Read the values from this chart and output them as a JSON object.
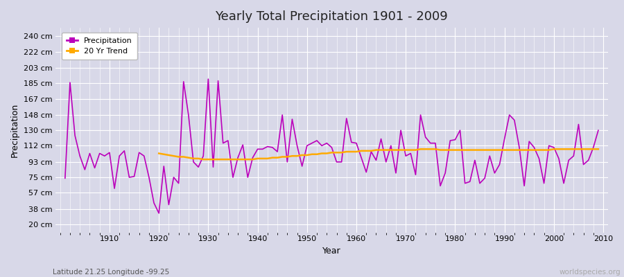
{
  "title": "Yearly Total Precipitation 1901 - 2009",
  "xlabel": "Year",
  "ylabel": "Precipitation",
  "subtitle": "Latitude 21.25 Longitude -99.25",
  "watermark": "worldspecies.org",
  "bg_color": "#d8d8e8",
  "plot_bg_color": "#d8d8e8",
  "precip_color": "#bb00bb",
  "trend_color": "#ffaa00",
  "years": [
    1901,
    1902,
    1903,
    1904,
    1905,
    1906,
    1907,
    1908,
    1909,
    1910,
    1911,
    1912,
    1913,
    1914,
    1915,
    1916,
    1917,
    1918,
    1919,
    1920,
    1921,
    1922,
    1923,
    1924,
    1925,
    1926,
    1927,
    1928,
    1929,
    1930,
    1931,
    1932,
    1933,
    1934,
    1935,
    1936,
    1937,
    1938,
    1939,
    1940,
    1941,
    1942,
    1943,
    1944,
    1945,
    1946,
    1947,
    1948,
    1949,
    1950,
    1951,
    1952,
    1953,
    1954,
    1955,
    1956,
    1957,
    1958,
    1959,
    1960,
    1961,
    1962,
    1963,
    1964,
    1965,
    1966,
    1967,
    1968,
    1969,
    1970,
    1971,
    1972,
    1973,
    1974,
    1975,
    1976,
    1977,
    1978,
    1979,
    1980,
    1981,
    1982,
    1983,
    1984,
    1985,
    1986,
    1987,
    1988,
    1989,
    1990,
    1991,
    1992,
    1993,
    1994,
    1995,
    1996,
    1997,
    1998,
    1999,
    2000,
    2001,
    2002,
    2003,
    2004,
    2005,
    2006,
    2007,
    2008,
    2009
  ],
  "precipitation": [
    74,
    186,
    124,
    100,
    84,
    103,
    86,
    103,
    100,
    104,
    62,
    100,
    106,
    75,
    76,
    104,
    100,
    75,
    45,
    33,
    88,
    43,
    75,
    68,
    187,
    148,
    93,
    87,
    100,
    190,
    87,
    188,
    115,
    118,
    75,
    98,
    113,
    75,
    98,
    108,
    108,
    111,
    110,
    105,
    148,
    93,
    143,
    112,
    88,
    112,
    115,
    118,
    112,
    115,
    110,
    93,
    93,
    144,
    116,
    115,
    98,
    81,
    105,
    95,
    120,
    93,
    112,
    80,
    130,
    100,
    103,
    78,
    148,
    122,
    115,
    115,
    65,
    80,
    118,
    119,
    130,
    68,
    70,
    95,
    68,
    74,
    100,
    80,
    90,
    120,
    148,
    142,
    110,
    65,
    117,
    110,
    97,
    68,
    112,
    110,
    97,
    68,
    95,
    100,
    137,
    90,
    95,
    110,
    130
  ],
  "trend": [
    null,
    null,
    null,
    null,
    null,
    null,
    null,
    null,
    null,
    null,
    null,
    null,
    null,
    null,
    null,
    null,
    null,
    null,
    null,
    103,
    102,
    101,
    100,
    99,
    99,
    98,
    97,
    97,
    96,
    96,
    96,
    96,
    96,
    96,
    96,
    96,
    96,
    96,
    96,
    97,
    97,
    97,
    98,
    98,
    99,
    99,
    100,
    100,
    101,
    101,
    102,
    102,
    103,
    103,
    104,
    104,
    104,
    105,
    105,
    105,
    106,
    106,
    106,
    107,
    107,
    107,
    107,
    107,
    107,
    107,
    107,
    107,
    108,
    108,
    108,
    108,
    107,
    107,
    107,
    107,
    107,
    107,
    107,
    107,
    107,
    107,
    107,
    107,
    107,
    107,
    107,
    107,
    107,
    107,
    107,
    107,
    107,
    107,
    107,
    108,
    108,
    108,
    108,
    108,
    108,
    108,
    108,
    108,
    108
  ],
  "yticks": [
    20,
    38,
    57,
    75,
    93,
    112,
    130,
    148,
    167,
    185,
    203,
    222,
    240
  ],
  "ylim": [
    10,
    250
  ],
  "xlim": [
    1899,
    2011
  ]
}
